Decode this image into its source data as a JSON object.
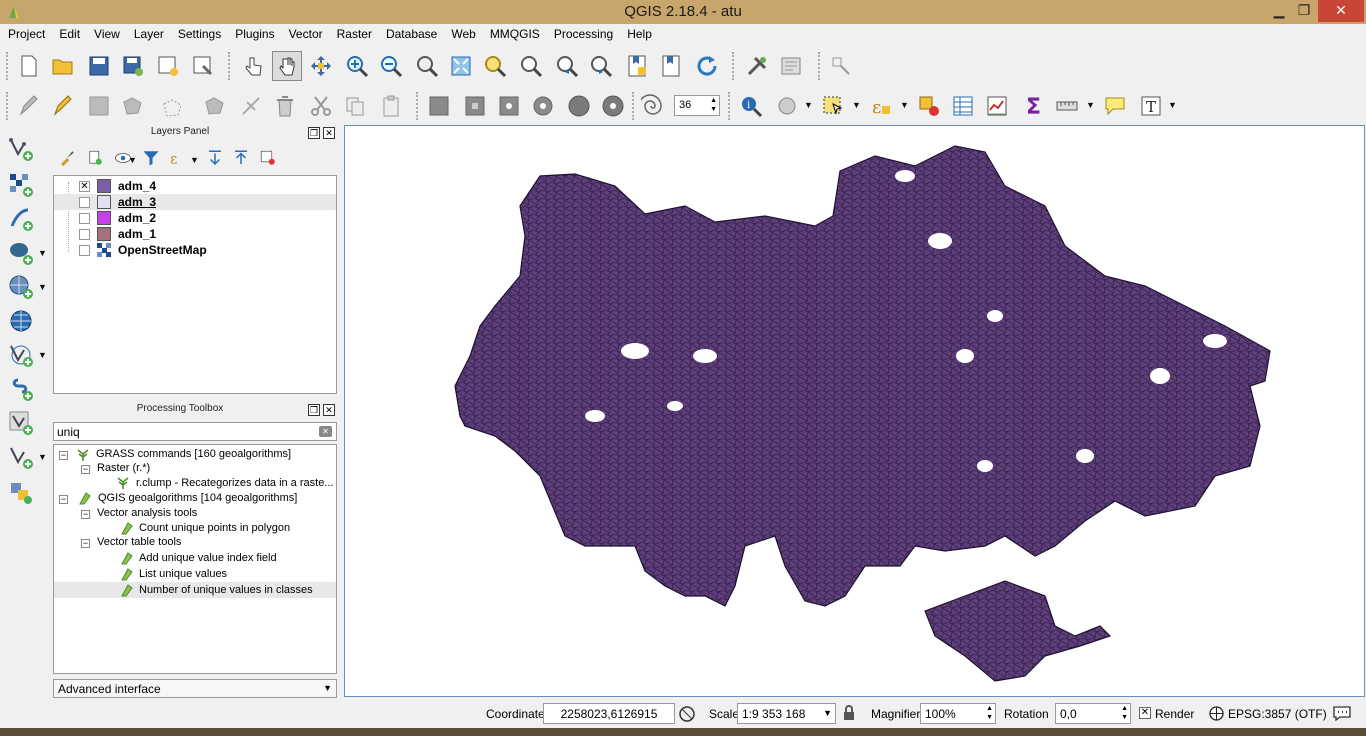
{
  "window": {
    "title": "QGIS 2.18.4 - atu"
  },
  "menu": [
    "Project",
    "Edit",
    "View",
    "Layer",
    "Settings",
    "Plugins",
    "Vector",
    "Raster",
    "Database",
    "Web",
    "MMQGIS",
    "Processing",
    "Help"
  ],
  "toolbar": {
    "snap_value": "36"
  },
  "layers_panel": {
    "title": "Layers Panel",
    "layers": [
      {
        "name": "adm_4",
        "checked": true,
        "color": "#7b5ea6"
      },
      {
        "name": "adm_3",
        "checked": false,
        "color": "#e4dff0"
      },
      {
        "name": "adm_2",
        "checked": false,
        "color": "#c641e6"
      },
      {
        "name": "adm_1",
        "checked": false,
        "color": "#a5707e"
      },
      {
        "name": "OpenStreetMap",
        "checked": false,
        "color": "raster"
      }
    ]
  },
  "processing": {
    "title": "Processing Toolbox",
    "search_value": "uniq",
    "tree": [
      {
        "label": "GRASS commands [160 geoalgorithms]"
      },
      {
        "label": "Raster (r.*)"
      },
      {
        "label": "r.clump - Recategorizes data in a raste..."
      },
      {
        "label": "QGIS geoalgorithms [104 geoalgorithms]"
      },
      {
        "label": "Vector analysis tools"
      },
      {
        "label": "Count unique points in polygon"
      },
      {
        "label": "Vector table tools"
      },
      {
        "label": "Add unique value index field"
      },
      {
        "label": "List unique values"
      },
      {
        "label": "Number of unique values in classes"
      }
    ],
    "interface_mode": "Advanced interface"
  },
  "map": {
    "fill_color": "#5e3f7c",
    "stroke_color": "#1e1230"
  },
  "status": {
    "coordinate_label": "Coordinate",
    "coordinate_value": "2258023,6126915",
    "scale_label": "Scale",
    "scale_value": "1:9 353 168",
    "magnifier_label": "Magnifier",
    "magnifier_value": "100%",
    "rotation_label": "Rotation",
    "rotation_value": "0,0",
    "render_label": "Render",
    "crs_label": "EPSG:3857 (OTF)"
  }
}
